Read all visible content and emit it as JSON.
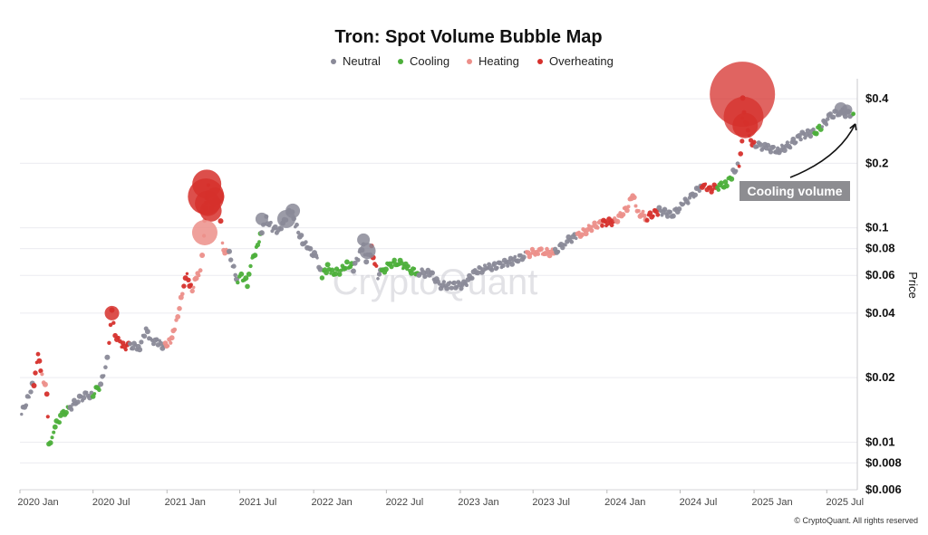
{
  "chart_data": {
    "type": "scatter",
    "title": "Tron: Spot Volume Bubble Map",
    "ylabel": "Price",
    "y_scale": "log",
    "ylim": [
      0.006,
      0.45
    ],
    "x_range": [
      "2020-01-01",
      "2025-09-15"
    ],
    "x_ticks": [
      {
        "date": "2020-01-01",
        "label": "2020 Jan"
      },
      {
        "date": "2020-07-01",
        "label": "2020 Jul"
      },
      {
        "date": "2021-01-01",
        "label": "2021 Jan"
      },
      {
        "date": "2021-07-01",
        "label": "2021 Jul"
      },
      {
        "date": "2022-01-01",
        "label": "2022 Jan"
      },
      {
        "date": "2022-07-01",
        "label": "2022 Jul"
      },
      {
        "date": "2023-01-01",
        "label": "2023 Jan"
      },
      {
        "date": "2023-07-01",
        "label": "2023 Jul"
      },
      {
        "date": "2024-01-01",
        "label": "2024 Jan"
      },
      {
        "date": "2024-07-01",
        "label": "2024 Jul"
      },
      {
        "date": "2025-01-01",
        "label": "2025 Jan"
      },
      {
        "date": "2025-07-01",
        "label": "2025 Jul"
      }
    ],
    "y_ticks": [
      {
        "value": 0.4,
        "label": "$0.4"
      },
      {
        "value": 0.2,
        "label": "$0.2"
      },
      {
        "value": 0.1,
        "label": "$0.1"
      },
      {
        "value": 0.08,
        "label": "$0.08"
      },
      {
        "value": 0.06,
        "label": "$0.06"
      },
      {
        "value": 0.04,
        "label": "$0.04"
      },
      {
        "value": 0.02,
        "label": "$0.02"
      },
      {
        "value": 0.01,
        "label": "$0.01"
      },
      {
        "value": 0.008,
        "label": "$0.008"
      },
      {
        "value": 0.006,
        "label": "$0.006"
      }
    ],
    "legend_position": "top-center",
    "grid": true,
    "series": [
      {
        "name": "Neutral",
        "color": "#8a8a98"
      },
      {
        "name": "Cooling",
        "color": "#4caf3a"
      },
      {
        "name": "Heating",
        "color": "#ec8f8a"
      },
      {
        "name": "Overheating",
        "color": "#d6302c"
      }
    ],
    "price_path": [
      {
        "date": "2020-01-05",
        "price": 0.0135,
        "state": "Neutral"
      },
      {
        "date": "2020-01-20",
        "price": 0.016,
        "state": "Neutral"
      },
      {
        "date": "2020-02-05",
        "price": 0.019,
        "state": "Overheating"
      },
      {
        "date": "2020-02-15",
        "price": 0.025,
        "state": "Overheating"
      },
      {
        "date": "2020-02-25",
        "price": 0.021,
        "state": "Heating"
      },
      {
        "date": "2020-03-08",
        "price": 0.017,
        "state": "Overheating"
      },
      {
        "date": "2020-03-13",
        "price": 0.0095,
        "state": "Cooling"
      },
      {
        "date": "2020-03-25",
        "price": 0.0115,
        "state": "Cooling"
      },
      {
        "date": "2020-04-15",
        "price": 0.0135,
        "state": "Cooling"
      },
      {
        "date": "2020-05-05",
        "price": 0.0145,
        "state": "Neutral"
      },
      {
        "date": "2020-05-25",
        "price": 0.0158,
        "state": "Neutral"
      },
      {
        "date": "2020-06-15",
        "price": 0.0165,
        "state": "Neutral"
      },
      {
        "date": "2020-07-01",
        "price": 0.0168,
        "state": "Cooling"
      },
      {
        "date": "2020-07-20",
        "price": 0.0185,
        "state": "Neutral"
      },
      {
        "date": "2020-08-01",
        "price": 0.022,
        "state": "Neutral"
      },
      {
        "date": "2020-08-10",
        "price": 0.03,
        "state": "Overheating"
      },
      {
        "date": "2020-08-17",
        "price": 0.04,
        "state": "Overheating"
      },
      {
        "date": "2020-08-25",
        "price": 0.032,
        "state": "Overheating"
      },
      {
        "date": "2020-09-10",
        "price": 0.028,
        "state": "Overheating"
      },
      {
        "date": "2020-10-01",
        "price": 0.028,
        "state": "Neutral"
      },
      {
        "date": "2020-10-25",
        "price": 0.028,
        "state": "Neutral"
      },
      {
        "date": "2020-11-10",
        "price": 0.033,
        "state": "Neutral"
      },
      {
        "date": "2020-11-25",
        "price": 0.03,
        "state": "Neutral"
      },
      {
        "date": "2020-12-10",
        "price": 0.029,
        "state": "Neutral"
      },
      {
        "date": "2020-12-28",
        "price": 0.028,
        "state": "Heating"
      },
      {
        "date": "2021-01-10",
        "price": 0.03,
        "state": "Heating"
      },
      {
        "date": "2021-01-20",
        "price": 0.033,
        "state": "Heating"
      },
      {
        "date": "2021-02-05",
        "price": 0.047,
        "state": "Heating"
      },
      {
        "date": "2021-02-12",
        "price": 0.055,
        "state": "Overheating"
      },
      {
        "date": "2021-02-20",
        "price": 0.059,
        "state": "Overheating"
      },
      {
        "date": "2021-03-05",
        "price": 0.052,
        "state": "Heating"
      },
      {
        "date": "2021-03-15",
        "price": 0.058,
        "state": "Heating"
      },
      {
        "date": "2021-03-25",
        "price": 0.062,
        "state": "Heating"
      },
      {
        "date": "2021-04-03",
        "price": 0.095,
        "state": "Heating"
      },
      {
        "date": "2021-04-06",
        "price": 0.12,
        "state": "Overheating"
      },
      {
        "date": "2021-04-10",
        "price": 0.14,
        "state": "Overheating"
      },
      {
        "date": "2021-04-14",
        "price": 0.16,
        "state": "Overheating"
      },
      {
        "date": "2021-04-22",
        "price": 0.12,
        "state": "Overheating"
      },
      {
        "date": "2021-05-01",
        "price": 0.14,
        "state": "Overheating"
      },
      {
        "date": "2021-05-10",
        "price": 0.13,
        "state": "Overheating"
      },
      {
        "date": "2021-05-19",
        "price": 0.085,
        "state": "Heating"
      },
      {
        "date": "2021-05-25",
        "price": 0.078,
        "state": "Heating"
      },
      {
        "date": "2021-06-05",
        "price": 0.075,
        "state": "Neutral"
      },
      {
        "date": "2021-06-20",
        "price": 0.062,
        "state": "Neutral"
      },
      {
        "date": "2021-06-26",
        "price": 0.055,
        "state": "Cooling"
      },
      {
        "date": "2021-07-05",
        "price": 0.06,
        "state": "Cooling"
      },
      {
        "date": "2021-07-20",
        "price": 0.055,
        "state": "Cooling"
      },
      {
        "date": "2021-08-01",
        "price": 0.07,
        "state": "Cooling"
      },
      {
        "date": "2021-08-15",
        "price": 0.085,
        "state": "Cooling"
      },
      {
        "date": "2021-08-25",
        "price": 0.095,
        "state": "Neutral"
      },
      {
        "date": "2021-09-05",
        "price": 0.11,
        "state": "Neutral"
      },
      {
        "date": "2021-09-20",
        "price": 0.1,
        "state": "Neutral"
      },
      {
        "date": "2021-10-05",
        "price": 0.095,
        "state": "Neutral"
      },
      {
        "date": "2021-10-20",
        "price": 0.11,
        "state": "Neutral"
      },
      {
        "date": "2021-11-05",
        "price": 0.12,
        "state": "Neutral"
      },
      {
        "date": "2021-11-20",
        "price": 0.1,
        "state": "Neutral"
      },
      {
        "date": "2021-12-05",
        "price": 0.087,
        "state": "Neutral"
      },
      {
        "date": "2021-12-20",
        "price": 0.079,
        "state": "Neutral"
      },
      {
        "date": "2022-01-10",
        "price": 0.072,
        "state": "Neutral"
      },
      {
        "date": "2022-01-22",
        "price": 0.06,
        "state": "Cooling"
      },
      {
        "date": "2022-02-05",
        "price": 0.065,
        "state": "Cooling"
      },
      {
        "date": "2022-02-20",
        "price": 0.062,
        "state": "Cooling"
      },
      {
        "date": "2022-03-10",
        "price": 0.063,
        "state": "Cooling"
      },
      {
        "date": "2022-03-25",
        "price": 0.068,
        "state": "Cooling"
      },
      {
        "date": "2022-04-10",
        "price": 0.065,
        "state": "Neutral"
      },
      {
        "date": "2022-04-25",
        "price": 0.075,
        "state": "Neutral"
      },
      {
        "date": "2022-05-05",
        "price": 0.085,
        "state": "Neutral"
      },
      {
        "date": "2022-05-12",
        "price": 0.07,
        "state": "Neutral"
      },
      {
        "date": "2022-05-25",
        "price": 0.08,
        "state": "Overheating"
      },
      {
        "date": "2022-06-10",
        "price": 0.06,
        "state": "Neutral"
      },
      {
        "date": "2022-06-20",
        "price": 0.062,
        "state": "Cooling"
      },
      {
        "date": "2022-07-10",
        "price": 0.068,
        "state": "Cooling"
      },
      {
        "date": "2022-08-01",
        "price": 0.069,
        "state": "Cooling"
      },
      {
        "date": "2022-08-25",
        "price": 0.064,
        "state": "Cooling"
      },
      {
        "date": "2022-09-20",
        "price": 0.062,
        "state": "Neutral"
      },
      {
        "date": "2022-10-20",
        "price": 0.061,
        "state": "Neutral"
      },
      {
        "date": "2022-11-10",
        "price": 0.054,
        "state": "Neutral"
      },
      {
        "date": "2022-12-10",
        "price": 0.054,
        "state": "Neutral"
      },
      {
        "date": "2023-01-10",
        "price": 0.054,
        "state": "Neutral"
      },
      {
        "date": "2023-02-10",
        "price": 0.063,
        "state": "Neutral"
      },
      {
        "date": "2023-03-10",
        "price": 0.065,
        "state": "Neutral"
      },
      {
        "date": "2023-04-10",
        "price": 0.067,
        "state": "Neutral"
      },
      {
        "date": "2023-05-10",
        "price": 0.07,
        "state": "Neutral"
      },
      {
        "date": "2023-06-15",
        "price": 0.075,
        "state": "Heating"
      },
      {
        "date": "2023-07-10",
        "price": 0.078,
        "state": "Heating"
      },
      {
        "date": "2023-08-01",
        "price": 0.077,
        "state": "Heating"
      },
      {
        "date": "2023-08-25",
        "price": 0.077,
        "state": "Neutral"
      },
      {
        "date": "2023-09-20",
        "price": 0.086,
        "state": "Neutral"
      },
      {
        "date": "2023-10-20",
        "price": 0.092,
        "state": "Heating"
      },
      {
        "date": "2023-11-20",
        "price": 0.1,
        "state": "Heating"
      },
      {
        "date": "2023-12-20",
        "price": 0.105,
        "state": "Overheating"
      },
      {
        "date": "2024-01-20",
        "price": 0.107,
        "state": "Heating"
      },
      {
        "date": "2024-02-20",
        "price": 0.124,
        "state": "Heating"
      },
      {
        "date": "2024-03-05",
        "price": 0.14,
        "state": "Heating"
      },
      {
        "date": "2024-03-20",
        "price": 0.118,
        "state": "Heating"
      },
      {
        "date": "2024-04-10",
        "price": 0.112,
        "state": "Overheating"
      },
      {
        "date": "2024-05-10",
        "price": 0.12,
        "state": "Neutral"
      },
      {
        "date": "2024-06-10",
        "price": 0.115,
        "state": "Neutral"
      },
      {
        "date": "2024-07-10",
        "price": 0.13,
        "state": "Neutral"
      },
      {
        "date": "2024-08-01",
        "price": 0.14,
        "state": "Neutral"
      },
      {
        "date": "2024-08-25",
        "price": 0.16,
        "state": "Overheating"
      },
      {
        "date": "2024-09-10",
        "price": 0.15,
        "state": "Overheating"
      },
      {
        "date": "2024-10-01",
        "price": 0.155,
        "state": "Cooling"
      },
      {
        "date": "2024-10-25",
        "price": 0.16,
        "state": "Cooling"
      },
      {
        "date": "2024-11-10",
        "price": 0.18,
        "state": "Neutral"
      },
      {
        "date": "2024-11-25",
        "price": 0.2,
        "state": "Overheating"
      },
      {
        "date": "2024-12-02",
        "price": 0.25,
        "state": "Overheating"
      },
      {
        "date": "2024-12-04",
        "price": 0.4,
        "state": "Overheating"
      },
      {
        "date": "2024-12-10",
        "price": 0.32,
        "state": "Overheating"
      },
      {
        "date": "2024-12-20",
        "price": 0.26,
        "state": "Overheating"
      },
      {
        "date": "2025-01-05",
        "price": 0.245,
        "state": "Neutral"
      },
      {
        "date": "2025-02-01",
        "price": 0.235,
        "state": "Neutral"
      },
      {
        "date": "2025-03-01",
        "price": 0.23,
        "state": "Neutral"
      },
      {
        "date": "2025-04-01",
        "price": 0.245,
        "state": "Neutral"
      },
      {
        "date": "2025-05-01",
        "price": 0.27,
        "state": "Neutral"
      },
      {
        "date": "2025-06-01",
        "price": 0.28,
        "state": "Cooling"
      },
      {
        "date": "2025-06-20",
        "price": 0.3,
        "state": "Neutral"
      },
      {
        "date": "2025-07-10",
        "price": 0.33,
        "state": "Neutral"
      },
      {
        "date": "2025-08-01",
        "price": 0.35,
        "state": "Neutral"
      },
      {
        "date": "2025-08-20",
        "price": 0.34,
        "state": "Neutral"
      },
      {
        "date": "2025-09-05",
        "price": 0.34,
        "state": "Cooling"
      }
    ],
    "bubbles": [
      {
        "date": "2020-08-17",
        "price": 0.04,
        "state": "Overheating",
        "size": 8
      },
      {
        "date": "2021-04-10",
        "price": 0.16,
        "state": "Overheating",
        "size": 16
      },
      {
        "date": "2021-04-08",
        "price": 0.14,
        "state": "Overheating",
        "size": 20
      },
      {
        "date": "2021-04-12",
        "price": 0.13,
        "state": "Overheating",
        "size": 14
      },
      {
        "date": "2021-04-20",
        "price": 0.12,
        "state": "Overheating",
        "size": 12
      },
      {
        "date": "2021-04-05",
        "price": 0.095,
        "state": "Heating",
        "size": 14
      },
      {
        "date": "2021-05-01",
        "price": 0.14,
        "state": "Overheating",
        "size": 10
      },
      {
        "date": "2021-08-25",
        "price": 0.11,
        "state": "Neutral",
        "size": 7
      },
      {
        "date": "2021-10-25",
        "price": 0.11,
        "state": "Neutral",
        "size": 10
      },
      {
        "date": "2021-11-10",
        "price": 0.12,
        "state": "Neutral",
        "size": 8
      },
      {
        "date": "2022-05-05",
        "price": 0.088,
        "state": "Neutral",
        "size": 7
      },
      {
        "date": "2022-05-15",
        "price": 0.078,
        "state": "Neutral",
        "size": 9
      },
      {
        "date": "2024-12-03",
        "price": 0.42,
        "state": "Overheating",
        "size": 36
      },
      {
        "date": "2024-12-06",
        "price": 0.33,
        "state": "Overheating",
        "size": 22
      },
      {
        "date": "2024-12-10",
        "price": 0.3,
        "state": "Overheating",
        "size": 14
      },
      {
        "date": "2025-08-05",
        "price": 0.36,
        "state": "Neutral",
        "size": 7
      },
      {
        "date": "2025-08-20",
        "price": 0.355,
        "state": "Neutral",
        "size": 6
      }
    ],
    "annotations": [
      {
        "text": "Cooling volume",
        "points_to_date": "2025-09-10",
        "points_to_price": 0.33
      }
    ]
  },
  "watermark": "CryptoQuant",
  "copyright": "© CryptoQuant. All rights reserved"
}
